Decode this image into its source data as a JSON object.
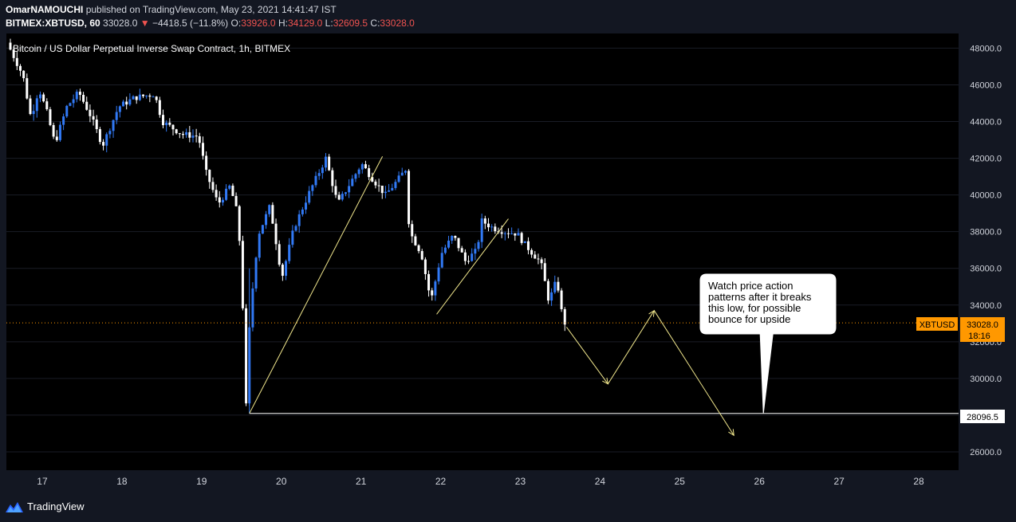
{
  "header": {
    "author": "OmarNAMOUCHI",
    "published_text": "published on TradingView.com, May 23, 2021 14:41:47 IST",
    "symbol": "BITMEX:XBTUSD, 60",
    "last": "33028.0",
    "change": "−4418.5 (−11.8%)",
    "o_label": "O:",
    "o_value": "33926.0",
    "h_label": "H:",
    "h_value": "34129.0",
    "l_label": "L:",
    "l_value": "32609.5",
    "c_label": "C:",
    "c_value": "33028.0"
  },
  "footer": {
    "brand": "TradingView"
  },
  "colors": {
    "background": "#000000",
    "up": "#3179f5",
    "down": "#ffffff",
    "drawing": "#f0e68c",
    "price_line": "#ff9800",
    "axis_text": "#d1d4dc"
  },
  "chart_data": {
    "type": "candlestick",
    "title": "Bitcoin / US Dollar Perpetual Inverse Swap Contract, 1h, BITMEX",
    "x_ticks": [
      "17",
      "18",
      "19",
      "20",
      "21",
      "22",
      "23",
      "24",
      "25",
      "26",
      "27",
      "28"
    ],
    "y_ticks": [
      "26000.0",
      "28000.0",
      "30000.0",
      "32000.0",
      "34000.0",
      "36000.0",
      "38000.0",
      "40000.0",
      "42000.0",
      "44000.0",
      "46000.0",
      "48000.0"
    ],
    "x_range_days": [
      16.55,
      28.5
    ],
    "y_range": [
      25000,
      48800
    ],
    "price_path": [
      [
        16.6,
        48300
      ],
      [
        16.8,
        46500
      ],
      [
        16.9,
        44200
      ],
      [
        17.0,
        45800
      ],
      [
        17.1,
        44500
      ],
      [
        17.2,
        42800
      ],
      [
        17.35,
        44800
      ],
      [
        17.5,
        45600
      ],
      [
        17.65,
        44300
      ],
      [
        17.8,
        42700
      ],
      [
        18.0,
        44800
      ],
      [
        18.2,
        45300
      ],
      [
        18.45,
        45500
      ],
      [
        18.55,
        44000
      ],
      [
        18.8,
        43300
      ],
      [
        19.0,
        43200
      ],
      [
        19.1,
        41200
      ],
      [
        19.25,
        39500
      ],
      [
        19.4,
        40500
      ],
      [
        19.5,
        38800
      ],
      [
        19.55,
        35000
      ],
      [
        19.6,
        28500
      ],
      [
        19.65,
        33500
      ],
      [
        19.75,
        37800
      ],
      [
        19.9,
        39400
      ],
      [
        20.05,
        35500
      ],
      [
        20.2,
        38200
      ],
      [
        20.4,
        40200
      ],
      [
        20.6,
        42000
      ],
      [
        20.75,
        39500
      ],
      [
        20.9,
        40600
      ],
      [
        21.05,
        41700
      ],
      [
        21.2,
        40800
      ],
      [
        21.35,
        40000
      ],
      [
        21.5,
        40800
      ],
      [
        21.6,
        41400
      ],
      [
        21.65,
        38000
      ],
      [
        21.8,
        36800
      ],
      [
        21.92,
        34200
      ],
      [
        22.05,
        36800
      ],
      [
        22.2,
        37800
      ],
      [
        22.35,
        36400
      ],
      [
        22.5,
        37000
      ],
      [
        22.55,
        38600
      ],
      [
        22.7,
        38200
      ],
      [
        22.85,
        38000
      ],
      [
        23.0,
        37900
      ],
      [
        23.1,
        37300
      ],
      [
        23.3,
        36300
      ],
      [
        23.4,
        34200
      ],
      [
        23.5,
        35400
      ],
      [
        23.58,
        33028
      ]
    ],
    "last_price": "33028.0",
    "last_price_label": "XBTUSD",
    "countdown": "18:16",
    "support_level": "28096.5",
    "drawings": {
      "trend_lines": [
        [
          [
            19.6,
            28096.5
          ],
          [
            21.27,
            42100
          ]
        ],
        [
          [
            21.95,
            33500
          ],
          [
            22.85,
            38700
          ]
        ]
      ],
      "projection_path": [
        [
          23.58,
          32800
        ],
        [
          24.1,
          29700
        ],
        [
          24.68,
          33700
        ],
        [
          25.68,
          26900
        ]
      ],
      "horizontal_line": [
        [
          19.6,
          28096.5
        ],
        [
          28.5,
          28096.5
        ]
      ]
    },
    "callout": {
      "lines": [
        "Watch price action",
        "patterns after it breaks",
        "this low, for possible",
        "bounce for upside"
      ],
      "pointer_to": [
        26.05,
        28096.5
      ]
    }
  }
}
